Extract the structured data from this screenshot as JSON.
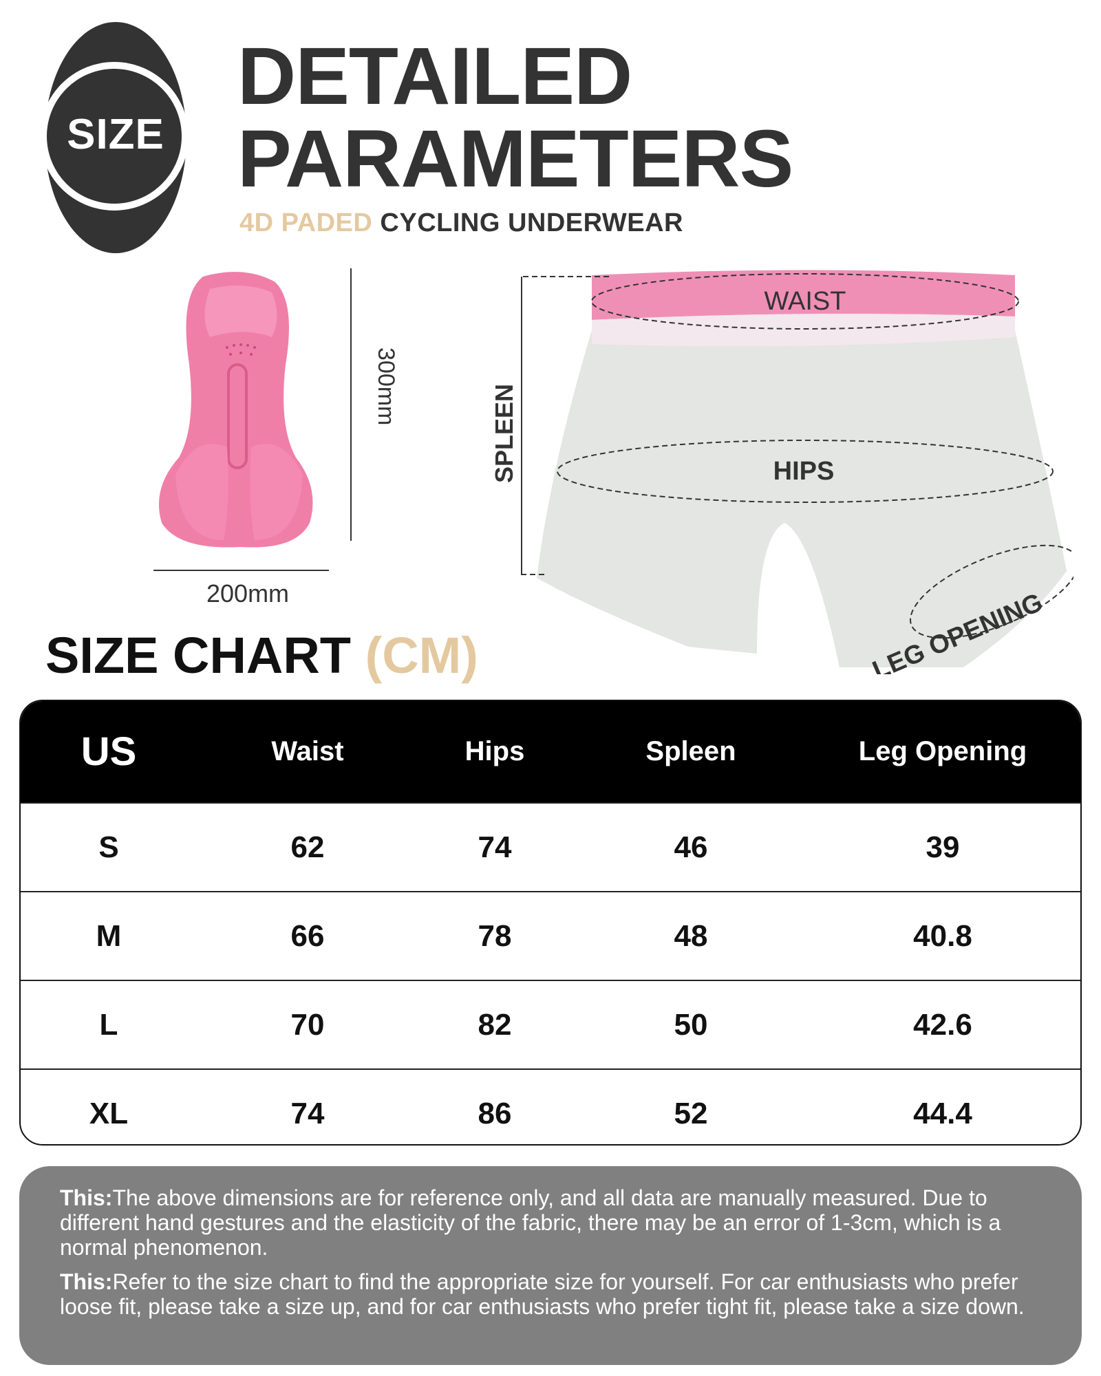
{
  "badge": {
    "label": "SIZE"
  },
  "header": {
    "title_line1": "DETAILED",
    "title_line2": "PARAMETERS",
    "subtitle_accent": "4D PADED",
    "subtitle_rest": "CYCLING UNDERWEAR"
  },
  "pad": {
    "length_label": "300mm",
    "width_label": "200mm"
  },
  "shorts": {
    "labels": {
      "waist": "WAIST",
      "hips": "HIPS",
      "spleen": "SPLEEN",
      "leg_opening": "LEG OPENING"
    }
  },
  "size_chart": {
    "title": "SIZE CHART",
    "unit": "(CM)",
    "columns": [
      "US",
      "Waist",
      "Hips",
      "Spleen",
      "Leg Opening"
    ],
    "rows": [
      [
        "S",
        "62",
        "74",
        "46",
        "39"
      ],
      [
        "M",
        "66",
        "78",
        "48",
        "40.8"
      ],
      [
        "L",
        "70",
        "82",
        "50",
        "42.6"
      ],
      [
        "XL",
        "74",
        "86",
        "52",
        "44.4"
      ]
    ]
  },
  "notes": [
    {
      "label": "This:",
      "text": "The above dimensions are for reference only, and all data are manually measured. Due to different hand gestures and the elasticity of the fabric, there may be an error of 1-3cm, which is a normal phenomenon."
    },
    {
      "label": "This:",
      "text": "Refer to the size chart to find the appropriate size for yourself. For car enthusiasts who prefer loose fit, please take a size up, and for car enthusiasts who prefer tight fit, please take a size down."
    }
  ],
  "colors": {
    "accent": "#e4c9a0",
    "dark": "#333333",
    "pad_pink": "#f07fa8",
    "note_bg": "#808080"
  }
}
